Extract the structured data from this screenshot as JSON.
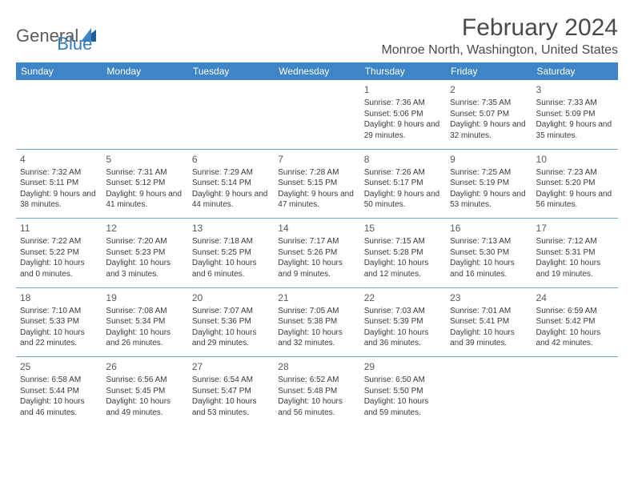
{
  "brand": {
    "general": "General",
    "blue": "Blue"
  },
  "title": "February 2024",
  "location": "Monroe North, Washington, United States",
  "colors": {
    "header_bg": "#3d85c6",
    "header_text": "#ffffff",
    "row_border": "#6fa8d8",
    "body_text": "#3a3a3a",
    "logo_blue": "#2f7bbf",
    "logo_gray": "#5a5a5a"
  },
  "dayNames": [
    "Sunday",
    "Monday",
    "Tuesday",
    "Wednesday",
    "Thursday",
    "Friday",
    "Saturday"
  ],
  "layout": {
    "startOffset": 4,
    "rows": 5,
    "cols": 7
  },
  "days": [
    {
      "n": 1,
      "sunrise": "7:36 AM",
      "sunset": "5:06 PM",
      "dl": "9 hours and 29 minutes."
    },
    {
      "n": 2,
      "sunrise": "7:35 AM",
      "sunset": "5:07 PM",
      "dl": "9 hours and 32 minutes."
    },
    {
      "n": 3,
      "sunrise": "7:33 AM",
      "sunset": "5:09 PM",
      "dl": "9 hours and 35 minutes."
    },
    {
      "n": 4,
      "sunrise": "7:32 AM",
      "sunset": "5:11 PM",
      "dl": "9 hours and 38 minutes."
    },
    {
      "n": 5,
      "sunrise": "7:31 AM",
      "sunset": "5:12 PM",
      "dl": "9 hours and 41 minutes."
    },
    {
      "n": 6,
      "sunrise": "7:29 AM",
      "sunset": "5:14 PM",
      "dl": "9 hours and 44 minutes."
    },
    {
      "n": 7,
      "sunrise": "7:28 AM",
      "sunset": "5:15 PM",
      "dl": "9 hours and 47 minutes."
    },
    {
      "n": 8,
      "sunrise": "7:26 AM",
      "sunset": "5:17 PM",
      "dl": "9 hours and 50 minutes."
    },
    {
      "n": 9,
      "sunrise": "7:25 AM",
      "sunset": "5:19 PM",
      "dl": "9 hours and 53 minutes."
    },
    {
      "n": 10,
      "sunrise": "7:23 AM",
      "sunset": "5:20 PM",
      "dl": "9 hours and 56 minutes."
    },
    {
      "n": 11,
      "sunrise": "7:22 AM",
      "sunset": "5:22 PM",
      "dl": "10 hours and 0 minutes."
    },
    {
      "n": 12,
      "sunrise": "7:20 AM",
      "sunset": "5:23 PM",
      "dl": "10 hours and 3 minutes."
    },
    {
      "n": 13,
      "sunrise": "7:18 AM",
      "sunset": "5:25 PM",
      "dl": "10 hours and 6 minutes."
    },
    {
      "n": 14,
      "sunrise": "7:17 AM",
      "sunset": "5:26 PM",
      "dl": "10 hours and 9 minutes."
    },
    {
      "n": 15,
      "sunrise": "7:15 AM",
      "sunset": "5:28 PM",
      "dl": "10 hours and 12 minutes."
    },
    {
      "n": 16,
      "sunrise": "7:13 AM",
      "sunset": "5:30 PM",
      "dl": "10 hours and 16 minutes."
    },
    {
      "n": 17,
      "sunrise": "7:12 AM",
      "sunset": "5:31 PM",
      "dl": "10 hours and 19 minutes."
    },
    {
      "n": 18,
      "sunrise": "7:10 AM",
      "sunset": "5:33 PM",
      "dl": "10 hours and 22 minutes."
    },
    {
      "n": 19,
      "sunrise": "7:08 AM",
      "sunset": "5:34 PM",
      "dl": "10 hours and 26 minutes."
    },
    {
      "n": 20,
      "sunrise": "7:07 AM",
      "sunset": "5:36 PM",
      "dl": "10 hours and 29 minutes."
    },
    {
      "n": 21,
      "sunrise": "7:05 AM",
      "sunset": "5:38 PM",
      "dl": "10 hours and 32 minutes."
    },
    {
      "n": 22,
      "sunrise": "7:03 AM",
      "sunset": "5:39 PM",
      "dl": "10 hours and 36 minutes."
    },
    {
      "n": 23,
      "sunrise": "7:01 AM",
      "sunset": "5:41 PM",
      "dl": "10 hours and 39 minutes."
    },
    {
      "n": 24,
      "sunrise": "6:59 AM",
      "sunset": "5:42 PM",
      "dl": "10 hours and 42 minutes."
    },
    {
      "n": 25,
      "sunrise": "6:58 AM",
      "sunset": "5:44 PM",
      "dl": "10 hours and 46 minutes."
    },
    {
      "n": 26,
      "sunrise": "6:56 AM",
      "sunset": "5:45 PM",
      "dl": "10 hours and 49 minutes."
    },
    {
      "n": 27,
      "sunrise": "6:54 AM",
      "sunset": "5:47 PM",
      "dl": "10 hours and 53 minutes."
    },
    {
      "n": 28,
      "sunrise": "6:52 AM",
      "sunset": "5:48 PM",
      "dl": "10 hours and 56 minutes."
    },
    {
      "n": 29,
      "sunrise": "6:50 AM",
      "sunset": "5:50 PM",
      "dl": "10 hours and 59 minutes."
    }
  ],
  "labels": {
    "sunrise": "Sunrise:",
    "sunset": "Sunset:",
    "daylight": "Daylight:"
  }
}
